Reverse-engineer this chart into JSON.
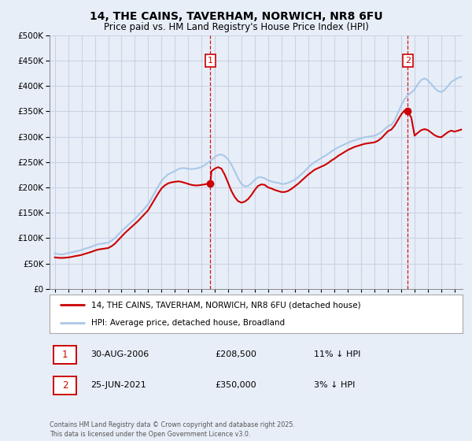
{
  "title": "14, THE CAINS, TAVERHAM, NORWICH, NR8 6FU",
  "subtitle": "Price paid vs. HM Land Registry's House Price Index (HPI)",
  "legend_line1": "14, THE CAINS, TAVERHAM, NORWICH, NR8 6FU (detached house)",
  "legend_line2": "HPI: Average price, detached house, Broadland",
  "hpi_color": "#aac8e8",
  "price_color": "#cc0000",
  "background_color": "#e8eef8",
  "grid_color": "#c8d4e4",
  "ylim": [
    0,
    500000
  ],
  "yticks": [
    0,
    50000,
    100000,
    150000,
    200000,
    250000,
    300000,
    350000,
    400000,
    450000,
    500000
  ],
  "xlim_start": 1994.6,
  "xlim_end": 2025.6,
  "footnote": "Contains HM Land Registry data © Crown copyright and database right 2025.\nThis data is licensed under the Open Government Licence v3.0.",
  "transaction1_date": "30-AUG-2006",
  "transaction1_price": 208500,
  "transaction1_hpi_diff": "11% ↓ HPI",
  "transaction1_year": 2006.67,
  "transaction2_date": "25-JUN-2021",
  "transaction2_price": 350000,
  "transaction2_hpi_diff": "3% ↓ HPI",
  "transaction2_year": 2021.48,
  "hpi_data": [
    [
      1995.0,
      70000
    ],
    [
      1995.08,
      69500
    ],
    [
      1995.17,
      69000
    ],
    [
      1995.25,
      68500
    ],
    [
      1995.33,
      68200
    ],
    [
      1995.42,
      68000
    ],
    [
      1995.5,
      68000
    ],
    [
      1995.58,
      68200
    ],
    [
      1995.67,
      68500
    ],
    [
      1995.75,
      69000
    ],
    [
      1995.83,
      69500
    ],
    [
      1995.92,
      70000
    ],
    [
      1996.0,
      70500
    ],
    [
      1996.08,
      71000
    ],
    [
      1996.17,
      71500
    ],
    [
      1996.25,
      72000
    ],
    [
      1996.33,
      72500
    ],
    [
      1996.42,
      73000
    ],
    [
      1996.5,
      73500
    ],
    [
      1996.58,
      74000
    ],
    [
      1996.67,
      74500
    ],
    [
      1996.75,
      75000
    ],
    [
      1996.83,
      75500
    ],
    [
      1996.92,
      76000
    ],
    [
      1997.0,
      77000
    ],
    [
      1997.25,
      79000
    ],
    [
      1997.5,
      81000
    ],
    [
      1997.75,
      83000
    ],
    [
      1998.0,
      86000
    ],
    [
      1998.25,
      88000
    ],
    [
      1998.5,
      89000
    ],
    [
      1998.75,
      90000
    ],
    [
      1999.0,
      91000
    ],
    [
      1999.25,
      95000
    ],
    [
      1999.5,
      100000
    ],
    [
      1999.75,
      107000
    ],
    [
      2000.0,
      114000
    ],
    [
      2000.25,
      120000
    ],
    [
      2000.5,
      126000
    ],
    [
      2000.75,
      132000
    ],
    [
      2001.0,
      138000
    ],
    [
      2001.25,
      145000
    ],
    [
      2001.5,
      152000
    ],
    [
      2001.75,
      159000
    ],
    [
      2002.0,
      167000
    ],
    [
      2002.25,
      178000
    ],
    [
      2002.5,
      190000
    ],
    [
      2002.75,
      202000
    ],
    [
      2003.0,
      213000
    ],
    [
      2003.25,
      220000
    ],
    [
      2003.5,
      226000
    ],
    [
      2003.75,
      229000
    ],
    [
      2004.0,
      232000
    ],
    [
      2004.25,
      236000
    ],
    [
      2004.5,
      238000
    ],
    [
      2004.75,
      238000
    ],
    [
      2005.0,
      237000
    ],
    [
      2005.25,
      236000
    ],
    [
      2005.5,
      237000
    ],
    [
      2005.75,
      238000
    ],
    [
      2006.0,
      240000
    ],
    [
      2006.25,
      244000
    ],
    [
      2006.5,
      249000
    ],
    [
      2006.75,
      254000
    ],
    [
      2007.0,
      260000
    ],
    [
      2007.25,
      264000
    ],
    [
      2007.5,
      265000
    ],
    [
      2007.75,
      262000
    ],
    [
      2008.0,
      255000
    ],
    [
      2008.25,
      245000
    ],
    [
      2008.5,
      232000
    ],
    [
      2008.75,
      218000
    ],
    [
      2009.0,
      207000
    ],
    [
      2009.25,
      202000
    ],
    [
      2009.5,
      203000
    ],
    [
      2009.75,
      208000
    ],
    [
      2010.0,
      215000
    ],
    [
      2010.25,
      220000
    ],
    [
      2010.5,
      220000
    ],
    [
      2010.75,
      218000
    ],
    [
      2011.0,
      214000
    ],
    [
      2011.25,
      212000
    ],
    [
      2011.5,
      210000
    ],
    [
      2011.75,
      209000
    ],
    [
      2012.0,
      207000
    ],
    [
      2012.25,
      207000
    ],
    [
      2012.5,
      209000
    ],
    [
      2012.75,
      212000
    ],
    [
      2013.0,
      215000
    ],
    [
      2013.25,
      220000
    ],
    [
      2013.5,
      226000
    ],
    [
      2013.75,
      232000
    ],
    [
      2014.0,
      239000
    ],
    [
      2014.25,
      245000
    ],
    [
      2014.5,
      250000
    ],
    [
      2014.75,
      254000
    ],
    [
      2015.0,
      258000
    ],
    [
      2015.25,
      262000
    ],
    [
      2015.5,
      266000
    ],
    [
      2015.75,
      271000
    ],
    [
      2016.0,
      275000
    ],
    [
      2016.25,
      279000
    ],
    [
      2016.5,
      282000
    ],
    [
      2016.75,
      285000
    ],
    [
      2017.0,
      288000
    ],
    [
      2017.25,
      291000
    ],
    [
      2017.5,
      293000
    ],
    [
      2017.75,
      295000
    ],
    [
      2018.0,
      297000
    ],
    [
      2018.25,
      299000
    ],
    [
      2018.5,
      300000
    ],
    [
      2018.75,
      301000
    ],
    [
      2019.0,
      302000
    ],
    [
      2019.25,
      305000
    ],
    [
      2019.5,
      309000
    ],
    [
      2019.75,
      315000
    ],
    [
      2020.0,
      321000
    ],
    [
      2020.25,
      323000
    ],
    [
      2020.5,
      332000
    ],
    [
      2020.75,
      347000
    ],
    [
      2021.0,
      362000
    ],
    [
      2021.25,
      374000
    ],
    [
      2021.5,
      382000
    ],
    [
      2021.75,
      387000
    ],
    [
      2022.0,
      393000
    ],
    [
      2022.25,
      404000
    ],
    [
      2022.5,
      412000
    ],
    [
      2022.75,
      415000
    ],
    [
      2023.0,
      411000
    ],
    [
      2023.25,
      404000
    ],
    [
      2023.5,
      396000
    ],
    [
      2023.75,
      390000
    ],
    [
      2024.0,
      388000
    ],
    [
      2024.25,
      392000
    ],
    [
      2024.5,
      400000
    ],
    [
      2024.75,
      408000
    ],
    [
      2025.0,
      412000
    ],
    [
      2025.25,
      416000
    ],
    [
      2025.5,
      418000
    ]
  ],
  "price_data": [
    [
      1995.0,
      62000
    ],
    [
      1995.17,
      61500
    ],
    [
      1995.33,
      61200
    ],
    [
      1995.5,
      61000
    ],
    [
      1995.67,
      61200
    ],
    [
      1995.83,
      61500
    ],
    [
      1996.0,
      62000
    ],
    [
      1996.25,
      63000
    ],
    [
      1996.5,
      64500
    ],
    [
      1996.75,
      65500
    ],
    [
      1997.0,
      67000
    ],
    [
      1997.25,
      69000
    ],
    [
      1997.5,
      71000
    ],
    [
      1997.75,
      73000
    ],
    [
      1998.0,
      75500
    ],
    [
      1998.25,
      77500
    ],
    [
      1998.5,
      78500
    ],
    [
      1998.75,
      79500
    ],
    [
      1999.0,
      80500
    ],
    [
      1999.25,
      84000
    ],
    [
      1999.5,
      89000
    ],
    [
      1999.75,
      96000
    ],
    [
      2000.0,
      103000
    ],
    [
      2000.25,
      110000
    ],
    [
      2000.5,
      116000
    ],
    [
      2000.75,
      122000
    ],
    [
      2001.0,
      128000
    ],
    [
      2001.25,
      134000
    ],
    [
      2001.5,
      141000
    ],
    [
      2001.75,
      148000
    ],
    [
      2002.0,
      155000
    ],
    [
      2002.25,
      166000
    ],
    [
      2002.5,
      177000
    ],
    [
      2002.75,
      188000
    ],
    [
      2003.0,
      198000
    ],
    [
      2003.25,
      204000
    ],
    [
      2003.5,
      208000
    ],
    [
      2003.75,
      210000
    ],
    [
      2004.0,
      211000
    ],
    [
      2004.25,
      212000
    ],
    [
      2004.5,
      211000
    ],
    [
      2004.75,
      209000
    ],
    [
      2005.0,
      207000
    ],
    [
      2005.25,
      205000
    ],
    [
      2005.5,
      204000
    ],
    [
      2005.75,
      204000
    ],
    [
      2006.0,
      205000
    ],
    [
      2006.25,
      206000
    ],
    [
      2006.5,
      207500
    ],
    [
      2006.67,
      208500
    ],
    [
      2006.75,
      232000
    ],
    [
      2007.0,
      237000
    ],
    [
      2007.25,
      240000
    ],
    [
      2007.5,
      237000
    ],
    [
      2007.75,
      225000
    ],
    [
      2008.0,
      209000
    ],
    [
      2008.25,
      193000
    ],
    [
      2008.5,
      181000
    ],
    [
      2008.75,
      173000
    ],
    [
      2009.0,
      170000
    ],
    [
      2009.25,
      172000
    ],
    [
      2009.5,
      177000
    ],
    [
      2009.75,
      185000
    ],
    [
      2010.0,
      195000
    ],
    [
      2010.25,
      203000
    ],
    [
      2010.5,
      206000
    ],
    [
      2010.75,
      205000
    ],
    [
      2011.0,
      200000
    ],
    [
      2011.25,
      198000
    ],
    [
      2011.5,
      195000
    ],
    [
      2011.75,
      193000
    ],
    [
      2012.0,
      191000
    ],
    [
      2012.25,
      191000
    ],
    [
      2012.5,
      193000
    ],
    [
      2012.75,
      197000
    ],
    [
      2013.0,
      202000
    ],
    [
      2013.25,
      207000
    ],
    [
      2013.5,
      213000
    ],
    [
      2013.75,
      219000
    ],
    [
      2014.0,
      225000
    ],
    [
      2014.25,
      230000
    ],
    [
      2014.5,
      235000
    ],
    [
      2014.75,
      238000
    ],
    [
      2015.0,
      241000
    ],
    [
      2015.25,
      244000
    ],
    [
      2015.5,
      248000
    ],
    [
      2015.75,
      253000
    ],
    [
      2016.0,
      257000
    ],
    [
      2016.25,
      262000
    ],
    [
      2016.5,
      266000
    ],
    [
      2016.75,
      270000
    ],
    [
      2017.0,
      274000
    ],
    [
      2017.25,
      277000
    ],
    [
      2017.5,
      280000
    ],
    [
      2017.75,
      282000
    ],
    [
      2018.0,
      284000
    ],
    [
      2018.25,
      286000
    ],
    [
      2018.5,
      287000
    ],
    [
      2018.75,
      288000
    ],
    [
      2019.0,
      289000
    ],
    [
      2019.25,
      292000
    ],
    [
      2019.5,
      297000
    ],
    [
      2019.75,
      304000
    ],
    [
      2020.0,
      311000
    ],
    [
      2020.25,
      314000
    ],
    [
      2020.5,
      322000
    ],
    [
      2020.75,
      333000
    ],
    [
      2021.0,
      344000
    ],
    [
      2021.25,
      352000
    ],
    [
      2021.48,
      350000
    ],
    [
      2021.5,
      349000
    ],
    [
      2021.75,
      338000
    ],
    [
      2022.0,
      302000
    ],
    [
      2022.25,
      308000
    ],
    [
      2022.5,
      313000
    ],
    [
      2022.75,
      315000
    ],
    [
      2023.0,
      313000
    ],
    [
      2023.25,
      308000
    ],
    [
      2023.5,
      303000
    ],
    [
      2023.75,
      300000
    ],
    [
      2024.0,
      299000
    ],
    [
      2024.25,
      304000
    ],
    [
      2024.5,
      309000
    ],
    [
      2024.75,
      312000
    ],
    [
      2025.0,
      310000
    ],
    [
      2025.25,
      312000
    ],
    [
      2025.5,
      314000
    ]
  ]
}
